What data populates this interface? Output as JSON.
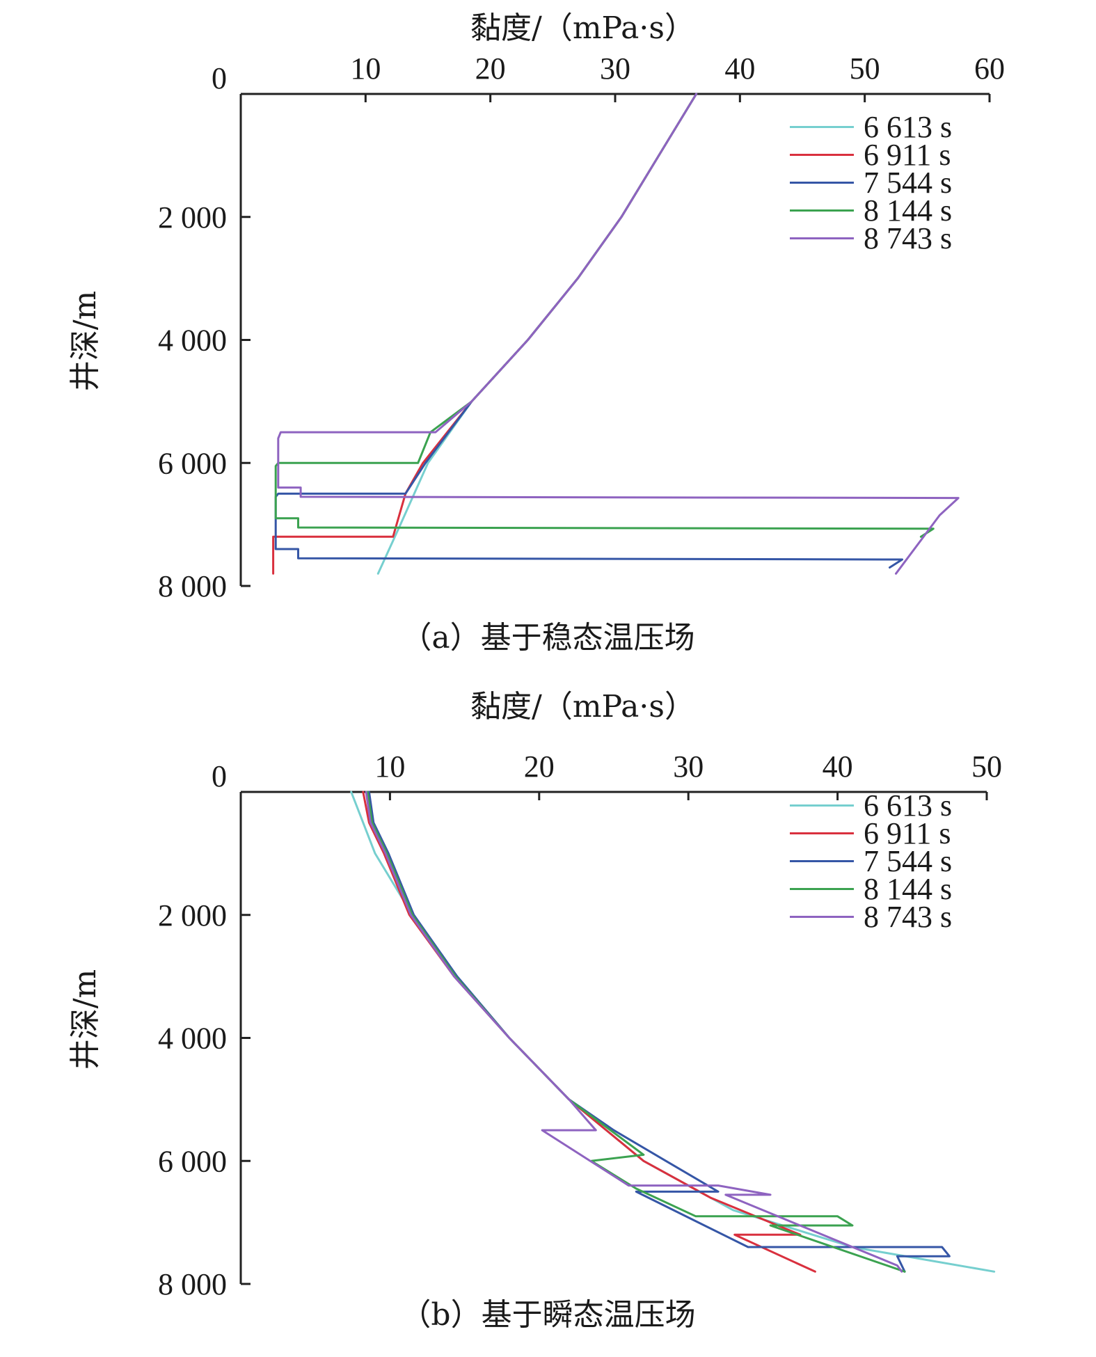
{
  "chart_data": [
    {
      "type": "line",
      "caption": "（a）基于稳态温压场",
      "xlabel": "黏度/（mPa·s）",
      "ylabel": "井深/m",
      "xlim": [
        0,
        60
      ],
      "ylim": [
        0,
        8000
      ],
      "x_ticks": [
        "10",
        "20",
        "30",
        "40",
        "50",
        "60"
      ],
      "y_ticks": [
        "0",
        "2 000",
        "4 000",
        "6 000",
        "8 000"
      ],
      "x_axis_position": "top",
      "y_axis_inverted": true,
      "grid": false,
      "legend_position": "top-right",
      "series": [
        {
          "name": "6 613 s",
          "color": "#76CFCF",
          "points": [
            [
              36.5,
              0
            ],
            [
              33.5,
              1000
            ],
            [
              30.5,
              2000
            ],
            [
              27,
              3000
            ],
            [
              23,
              4000
            ],
            [
              18.5,
              5000
            ],
            [
              15,
              6000
            ],
            [
              12.8,
              7000
            ],
            [
              11,
              7800
            ]
          ]
        },
        {
          "name": "6 911 s",
          "color": "#D9303E",
          "points": [
            [
              36.5,
              0
            ],
            [
              33.5,
              1000
            ],
            [
              30.5,
              2000
            ],
            [
              27,
              3000
            ],
            [
              23,
              4000
            ],
            [
              18.5,
              5000
            ],
            [
              14.6,
              6000
            ],
            [
              13.2,
              6500
            ],
            [
              12.2,
              7200
            ],
            [
              2.6,
              7200
            ],
            [
              2.6,
              7800
            ]
          ]
        },
        {
          "name": "7 544 s",
          "color": "#3556A6",
          "points": [
            [
              36.5,
              0
            ],
            [
              33.5,
              1000
            ],
            [
              30.5,
              2000
            ],
            [
              27,
              3000
            ],
            [
              23,
              4000
            ],
            [
              18.5,
              5000
            ],
            [
              14.8,
              6000
            ],
            [
              13.2,
              6500
            ],
            [
              3,
              6500
            ],
            [
              2.8,
              6550
            ],
            [
              2.8,
              7400
            ],
            [
              4.6,
              7400
            ],
            [
              4.6,
              7550
            ],
            [
              53,
              7570
            ],
            [
              52,
              7700
            ]
          ]
        },
        {
          "name": "8 144 s",
          "color": "#3BA250",
          "points": [
            [
              36.5,
              0
            ],
            [
              33.5,
              1000
            ],
            [
              30.5,
              2000
            ],
            [
              27,
              3000
            ],
            [
              23,
              4000
            ],
            [
              18.5,
              5000
            ],
            [
              15.2,
              5500
            ],
            [
              14.2,
              6000
            ],
            [
              3,
              6000
            ],
            [
              2.8,
              6050
            ],
            [
              2.8,
              6900
            ],
            [
              4.6,
              6900
            ],
            [
              4.6,
              7050
            ],
            [
              55.5,
              7070
            ],
            [
              54.5,
              7200
            ]
          ]
        },
        {
          "name": "8 743 s",
          "color": "#8E63C0",
          "points": [
            [
              36.5,
              0
            ],
            [
              33.5,
              1000
            ],
            [
              30.5,
              2000
            ],
            [
              27,
              3000
            ],
            [
              23,
              4000
            ],
            [
              18.5,
              5000
            ],
            [
              15.6,
              5500
            ],
            [
              3.2,
              5500
            ],
            [
              3,
              5600
            ],
            [
              3,
              6400
            ],
            [
              4.8,
              6400
            ],
            [
              4.8,
              6550
            ],
            [
              57.5,
              6570
            ],
            [
              56,
              6850
            ],
            [
              52.5,
              7800
            ]
          ]
        }
      ]
    },
    {
      "type": "line",
      "caption": "（b）基于瞬态温压场",
      "xlabel": "黏度/（mPa·s）",
      "ylabel": "井深/m",
      "xlim": [
        0,
        50
      ],
      "ylim": [
        0,
        8000
      ],
      "x_ticks": [
        "10",
        "20",
        "30",
        "40",
        "50"
      ],
      "y_ticks": [
        "0",
        "2 000",
        "4 000",
        "6 000",
        "8 000"
      ],
      "x_axis_position": "top",
      "y_axis_inverted": true,
      "grid": false,
      "legend_position": "top-right",
      "series": [
        {
          "name": "6 613 s",
          "color": "#76CFCF",
          "points": [
            [
              7.4,
              0
            ],
            [
              9,
              1000
            ],
            [
              11.5,
              2000
            ],
            [
              14.5,
              3000
            ],
            [
              18,
              4000
            ],
            [
              22,
              5000
            ],
            [
              27,
              6000
            ],
            [
              33,
              6800
            ],
            [
              41,
              7400
            ],
            [
              50.5,
              7800
            ]
          ]
        },
        {
          "name": "6 911 s",
          "color": "#D9303E",
          "points": [
            [
              8.2,
              0
            ],
            [
              8.6,
              500
            ],
            [
              9.6,
              1000
            ],
            [
              11.3,
              2000
            ],
            [
              14.3,
              3000
            ],
            [
              18,
              4000
            ],
            [
              22,
              5000
            ],
            [
              27,
              6000
            ],
            [
              31.5,
              6600
            ],
            [
              37.5,
              7200
            ],
            [
              33.1,
              7200
            ],
            [
              38.5,
              7800
            ]
          ]
        },
        {
          "name": "7 544 s",
          "color": "#3556A6",
          "points": [
            [
              8.6,
              0
            ],
            [
              8.9,
              500
            ],
            [
              9.9,
              1000
            ],
            [
              11.6,
              2000
            ],
            [
              14.5,
              3000
            ],
            [
              18,
              4000
            ],
            [
              22,
              5000
            ],
            [
              25,
              5500
            ],
            [
              28.5,
              6000
            ],
            [
              32,
              6500
            ],
            [
              26.5,
              6500
            ],
            [
              34,
              7400
            ],
            [
              47,
              7400
            ],
            [
              47.5,
              7550
            ],
            [
              44,
              7550
            ],
            [
              44.5,
              7800
            ]
          ]
        },
        {
          "name": "8 144 s",
          "color": "#3BA250",
          "points": [
            [
              8.5,
              0
            ],
            [
              8.8,
              500
            ],
            [
              9.8,
              1000
            ],
            [
              11.5,
              2000
            ],
            [
              14.4,
              3000
            ],
            [
              18,
              4000
            ],
            [
              22,
              5000
            ],
            [
              27,
              5900
            ],
            [
              23.5,
              6000
            ],
            [
              26.5,
              6450
            ],
            [
              30.5,
              6900
            ],
            [
              40,
              6900
            ],
            [
              41,
              7050
            ],
            [
              35.5,
              7050
            ],
            [
              44.5,
              7800
            ]
          ]
        },
        {
          "name": "8 743 s",
          "color": "#8E63C0",
          "points": [
            [
              8.4,
              0
            ],
            [
              8.7,
              500
            ],
            [
              9.7,
              1000
            ],
            [
              11.4,
              2000
            ],
            [
              14.3,
              3000
            ],
            [
              18,
              4000
            ],
            [
              22,
              5000
            ],
            [
              23.8,
              5500
            ],
            [
              20.2,
              5500
            ],
            [
              26,
              6400
            ],
            [
              32,
              6400
            ],
            [
              35.5,
              6550
            ],
            [
              32.5,
              6550
            ],
            [
              38,
              7100
            ],
            [
              44,
              7700
            ],
            [
              44.3,
              7800
            ]
          ]
        }
      ]
    }
  ]
}
